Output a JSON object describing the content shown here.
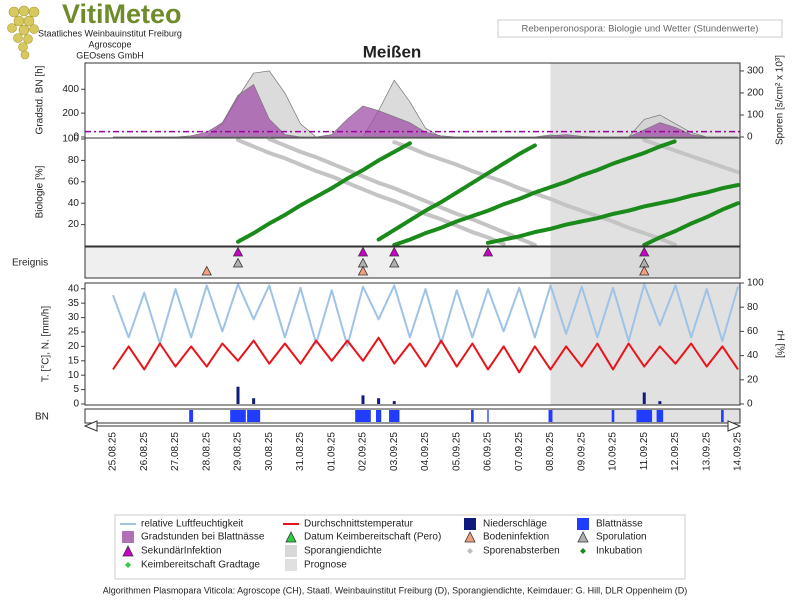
{
  "header": {
    "logo": "VitiMeteo",
    "lines": [
      "Staatliches Weinbauinstitut Freiburg",
      "Agroscope",
      "GEOsens GmbH"
    ],
    "info": "Rebenperonospora: Biologie und Wetter (Stundenwerte)"
  },
  "footer": "Algorithmen Plasmopara Viticola: Agroscope (CH), Staatl. Weinbauinstitut Freiburg (D), Sporangiendichte, Keimdauer: G. Hill, DLR Oppenheim (D)",
  "chart_data": {
    "type": "line",
    "title": "Meißen",
    "categories": [
      "25.08.25",
      null,
      "26.08.25",
      null,
      "27.08.25",
      null,
      "28.08.25",
      null,
      "29.08.25",
      null,
      "30.08.25",
      null,
      "31.08.25",
      null,
      "01.09.25",
      null,
      "02.09.25",
      null,
      "03.09.25",
      null,
      "04.09.25",
      null,
      "05.09.25",
      null,
      "06.09.25",
      null,
      "07.09.25",
      null,
      "08.09.25",
      null,
      "09.09.25",
      null,
      "10.09.25",
      null,
      "11.09.25",
      null,
      "12.09.25",
      null,
      "13.09.25",
      null,
      "14.09.25"
    ],
    "prognose_from": "08.09.25",
    "prognose_color": "#c8c8c8",
    "gradstd": {
      "ylabel": "Gradstd. BN [h]",
      "y2label": "Sporen [s/cm² x 10³]",
      "ylim": [
        0,
        620
      ],
      "yticks": [
        0,
        200,
        400
      ],
      "y2lim": [
        0,
        336
      ],
      "y2ticks": [
        0,
        100,
        200,
        300
      ],
      "threshold": {
        "value": 45,
        "color": "#a000a0"
      },
      "series": [
        {
          "style": "area",
          "axis": "y2",
          "color": "#cfcfcf",
          "values": [
            0,
            0,
            0,
            0,
            0,
            0,
            0,
            60,
            180,
            290,
            300,
            200,
            60,
            0,
            0,
            0,
            0,
            120,
            258,
            160,
            40,
            0,
            0,
            0,
            0,
            0,
            0,
            0,
            10,
            0,
            0,
            0,
            0,
            0,
            80,
            100,
            60,
            20,
            0,
            0,
            0
          ]
        },
        {
          "style": "area",
          "color": "#a050a8",
          "values": [
            0,
            0,
            0,
            0,
            0,
            10,
            40,
            120,
            350,
            440,
            150,
            20,
            0,
            0,
            20,
            150,
            260,
            220,
            170,
            120,
            40,
            10,
            0,
            0,
            0,
            0,
            0,
            0,
            10,
            20,
            5,
            0,
            0,
            0,
            60,
            120,
            80,
            20,
            0,
            0,
            0
          ]
        }
      ]
    },
    "biologie": {
      "ylabel": "Biologie [%]",
      "ylim": [
        0,
        100
      ],
      "yticks": [
        20,
        40,
        60,
        80,
        100
      ],
      "series": [
        {
          "color": "#c4c4c4",
          "curves": [
            [
              null,
              null,
              null,
              null,
              null,
              null,
              null,
              null,
              99,
              93,
              87,
              82,
              76,
              70,
              65,
              59,
              53,
              47,
              42,
              36,
              30,
              25,
              19,
              13,
              8,
              2,
              null,
              null,
              null,
              null,
              null,
              null,
              null,
              null,
              null,
              null,
              null,
              null,
              null,
              null,
              null
            ],
            [
              null,
              null,
              null,
              null,
              null,
              null,
              null,
              null,
              null,
              null,
              100,
              94,
              88,
              83,
              77,
              71,
              65,
              59,
              54,
              48,
              42,
              36,
              30,
              25,
              19,
              13,
              7,
              1,
              null,
              null,
              null,
              null,
              null,
              null,
              null,
              null,
              null,
              null,
              null,
              null,
              null
            ],
            [
              null,
              null,
              null,
              null,
              null,
              null,
              null,
              null,
              null,
              null,
              null,
              null,
              null,
              null,
              null,
              null,
              null,
              null,
              97,
              92,
              86,
              81,
              76,
              70,
              65,
              60,
              54,
              49,
              44,
              38,
              33,
              28,
              23,
              17,
              12,
              7,
              1,
              null,
              null,
              null,
              null
            ],
            [
              null,
              null,
              null,
              null,
              null,
              null,
              null,
              null,
              null,
              null,
              null,
              null,
              null,
              null,
              null,
              null,
              null,
              null,
              null,
              null,
              null,
              null,
              null,
              null,
              null,
              null,
              null,
              null,
              null,
              null,
              null,
              null,
              null,
              null,
              99,
              94,
              89,
              84,
              79,
              74,
              69
            ]
          ]
        },
        {
          "color": "#1a8a1a",
          "curves": [
            [
              null,
              null,
              null,
              null,
              null,
              null,
              null,
              null,
              4,
              12,
              21,
              29,
              38,
              46,
              54,
              63,
              71,
              80,
              88,
              96,
              null,
              null,
              null,
              null,
              null,
              null,
              null,
              null,
              null,
              null,
              null,
              null,
              null,
              null,
              null,
              null,
              null,
              null,
              null,
              null,
              null
            ],
            [
              null,
              null,
              null,
              null,
              null,
              null,
              null,
              null,
              null,
              null,
              null,
              null,
              null,
              null,
              null,
              null,
              null,
              6,
              15,
              24,
              33,
              41,
              50,
              59,
              68,
              77,
              86,
              94,
              null,
              null,
              null,
              null,
              null,
              null,
              null,
              null,
              null,
              null,
              null,
              null,
              null
            ],
            [
              null,
              null,
              null,
              null,
              null,
              null,
              null,
              null,
              null,
              null,
              null,
              null,
              null,
              null,
              null,
              null,
              null,
              null,
              1,
              6,
              12,
              17,
              23,
              28,
              33,
              39,
              44,
              50,
              55,
              60,
              66,
              71,
              77,
              82,
              87,
              93,
              98,
              null,
              null,
              null,
              null
            ],
            [
              null,
              null,
              null,
              null,
              null,
              null,
              null,
              null,
              null,
              null,
              null,
              null,
              null,
              null,
              null,
              null,
              null,
              null,
              null,
              null,
              null,
              null,
              null,
              null,
              3,
              6,
              9,
              13,
              16,
              20,
              23,
              26,
              30,
              33,
              37,
              40,
              43,
              47,
              50,
              54,
              57
            ],
            [
              null,
              null,
              null,
              null,
              null,
              null,
              null,
              null,
              null,
              null,
              null,
              null,
              null,
              null,
              null,
              null,
              null,
              null,
              null,
              null,
              null,
              null,
              null,
              null,
              null,
              null,
              null,
              null,
              null,
              null,
              null,
              null,
              null,
              null,
              1,
              8,
              14,
              21,
              27,
              34,
              40
            ]
          ]
        }
      ]
    },
    "ereignis": {
      "label": "Ereignis",
      "events": [
        {
          "color": "#cc00cc",
          "dates": [
            "29.08.25",
            "02.09.25",
            "03.09.25",
            "06.09.25",
            "11.09.25"
          ]
        },
        {
          "color": "#b0b0b0",
          "dates": [
            "29.08.25",
            "02.09.25",
            "03.09.25",
            "11.09.25"
          ]
        },
        {
          "color": "#f0a080",
          "dates": [
            "28.08.25",
            "02.09.25",
            "11.09.25"
          ]
        }
      ]
    },
    "weather": {
      "ylabel": "T. [°C], N. [mm/h]",
      "y2label": "rH [%]",
      "ylim": [
        0,
        42
      ],
      "yticks": [
        0,
        5,
        10,
        15,
        20,
        25,
        30,
        35,
        40
      ],
      "y2lim": [
        0,
        100
      ],
      "y2ticks": [
        0,
        20,
        40,
        60,
        80,
        100
      ],
      "series": [
        {
          "style": "line",
          "axis": "y2",
          "color": "#9ec3e6",
          "values": [
            90,
            55,
            92,
            50,
            95,
            55,
            98,
            60,
            99,
            70,
            98,
            55,
            96,
            50,
            94,
            48,
            97,
            70,
            98,
            55,
            95,
            50,
            94,
            55,
            95,
            60,
            96,
            55,
            98,
            58,
            97,
            55,
            96,
            52,
            99,
            65,
            98,
            55,
            95,
            52,
            97
          ]
        },
        {
          "style": "line",
          "color": "#e8141a",
          "values": [
            12,
            20,
            12,
            21,
            13,
            20,
            13,
            21,
            15,
            22,
            14,
            21,
            14,
            22,
            15,
            22,
            15,
            23,
            14,
            21,
            13,
            22,
            13,
            21,
            12,
            20,
            11,
            20,
            12,
            20,
            13,
            21,
            12,
            21,
            13,
            20,
            14,
            21,
            13,
            20,
            12
          ]
        },
        {
          "style": "bar",
          "color": "#101a7a",
          "values": [
            0,
            0,
            0,
            0,
            0,
            0,
            0,
            0,
            6,
            2,
            0,
            0,
            0,
            0,
            0,
            0,
            3,
            2,
            1,
            0,
            0,
            0,
            0,
            0,
            0,
            0,
            0,
            0,
            0,
            0,
            0,
            0,
            0,
            0,
            4,
            1,
            0,
            0,
            0,
            0,
            0
          ]
        }
      ]
    },
    "bn": {
      "label": "BN",
      "color": "#1f3cff",
      "values": [
        0,
        0,
        0,
        0,
        0,
        3,
        0,
        0,
        12,
        10,
        0,
        0,
        0,
        0,
        0,
        0,
        12,
        4,
        8,
        0,
        0,
        0,
        0,
        2,
        1,
        0,
        0,
        0,
        3,
        0,
        0,
        0,
        2,
        0,
        12,
        5,
        0,
        0,
        0,
        2,
        0
      ]
    },
    "legend": [
      {
        "name": "relative Luftfeuchtigkeit",
        "marker": "line",
        "color": "#9ec3e6"
      },
      {
        "name": "Durchschnittstemperatur",
        "marker": "line",
        "color": "#e8141a"
      },
      {
        "name": "Niederschläge",
        "marker": "square",
        "color": "#101a7a"
      },
      {
        "name": "Blattnässe",
        "marker": "square",
        "color": "#1f3cff"
      },
      {
        "name": "Gradstunden bei Blattnässe",
        "marker": "square",
        "color": "#b070b8"
      },
      {
        "name": "Datum Keimbereitschaft (Pero)",
        "marker": "triangle",
        "color": "#2ecc40"
      },
      {
        "name": "Bodeninfektion",
        "marker": "triangle",
        "color": "#f0a080"
      },
      {
        "name": "Sporulation",
        "marker": "triangle",
        "color": "#b0b0b0"
      },
      {
        "name": "SekundärInfektion",
        "marker": "triangle",
        "color": "#cc00cc"
      },
      {
        "name": "Sporangiendichte",
        "marker": "square",
        "color": "#d8d8d8"
      },
      {
        "name": "Sporenabsterben",
        "marker": "diamond",
        "color": "#c0c0c0"
      },
      {
        "name": "Inkubation",
        "marker": "diamond",
        "color": "#1a8a1a"
      },
      {
        "name": "Keimbereitschaft Gradtage",
        "marker": "diamond",
        "color": "#2ecc40"
      },
      {
        "name": "Prognose",
        "marker": "square",
        "color": "#e0e0e0"
      }
    ]
  }
}
